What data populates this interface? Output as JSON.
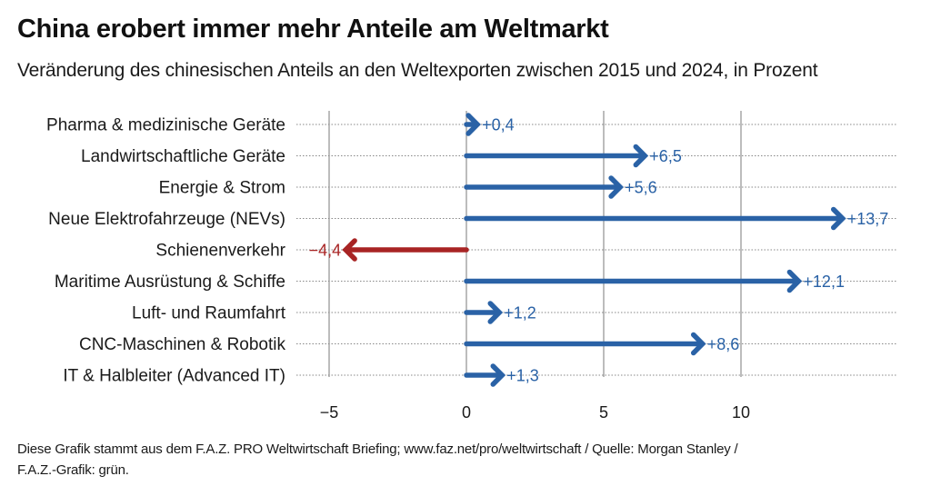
{
  "title": "China erobert immer mehr Anteile am Weltmarkt",
  "subtitle": "Veränderung des chinesischen Anteils an den Weltexporten zwischen 2015 und 2024, in Prozent",
  "footer": {
    "line1": "Diese Grafik stammt aus dem F.A.Z. PRO Weltwirtschaft Briefing; www.faz.net/pro/weltwirtschaft / Quelle: Morgan Stanley /",
    "line2": "F.A.Z.-Grafik: grün."
  },
  "colors": {
    "positive": "#2a62a6",
    "negative": "#a82424",
    "grid": "#999999",
    "dotted": "#888888"
  },
  "chart_data": {
    "type": "bar",
    "orientation": "horizontal",
    "style": "arrow",
    "title": "China erobert immer mehr Anteile am Weltmarkt",
    "subtitle": "Veränderung des chinesischen Anteils an den Weltexporten zwischen 2015 und 2024, in Prozent",
    "xlabel": "",
    "ylabel": "",
    "xlim": [
      -5.5,
      15.8
    ],
    "xticks": [
      -5,
      0,
      5,
      10
    ],
    "xtick_labels": [
      "−5",
      "0",
      "5",
      "10"
    ],
    "grid": true,
    "categories": [
      "Pharma & medizinische Geräte",
      "Landwirtschaftliche Geräte",
      "Energie & Strom",
      "Neue Elektrofahrzeuge (NEVs)",
      "Schienenverkehr",
      "Maritime Ausrüstung & Schiffe",
      "Luft- und Raumfahrt",
      "CNC-Maschinen & Robotik",
      "IT & Halbleiter (Advanced IT)"
    ],
    "values": [
      0.4,
      6.5,
      5.6,
      13.7,
      -4.4,
      12.1,
      1.2,
      8.6,
      1.3
    ],
    "value_labels": [
      "+0,4",
      "+6,5",
      "+5,6",
      "+13,7",
      "−4,4",
      "+12,1",
      "+1,2",
      "+8,6",
      "+1,3"
    ]
  }
}
